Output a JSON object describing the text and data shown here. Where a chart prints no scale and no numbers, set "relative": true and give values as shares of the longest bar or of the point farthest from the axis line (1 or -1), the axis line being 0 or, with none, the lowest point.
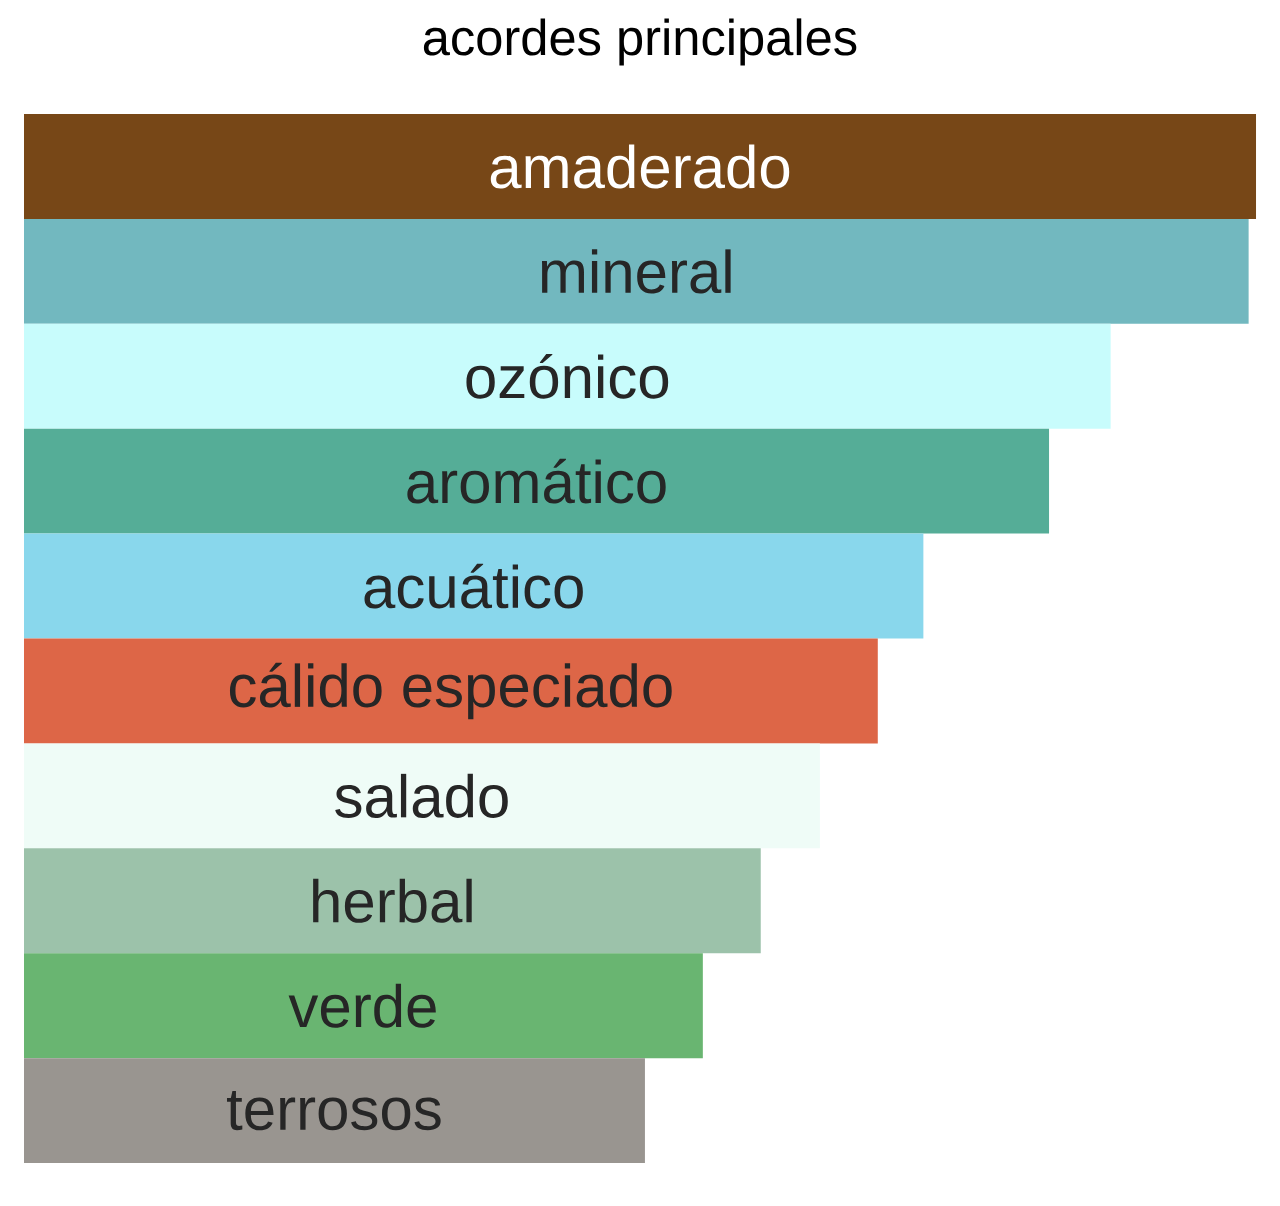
{
  "chart_data": {
    "type": "bar",
    "orientation": "horizontal",
    "relative": true,
    "title": "acordes principales",
    "categories": [
      "amaderado",
      "mineral",
      "ozónico",
      "aromático",
      "acuático",
      "cálido especiado",
      "salado",
      "herbal",
      "verde",
      "terrosos"
    ],
    "values": [
      1,
      0.994,
      0.882,
      0.832,
      0.73,
      0.693,
      0.646,
      0.598,
      0.551,
      0.504
    ],
    "colors": [
      "#774717",
      "#72b8bf",
      "#c8fcfc",
      "#55ad97",
      "#89d7ec",
      "#dd6647",
      "#effcf7",
      "#9cc2aa",
      "#69b571",
      "#999590"
    ]
  }
}
